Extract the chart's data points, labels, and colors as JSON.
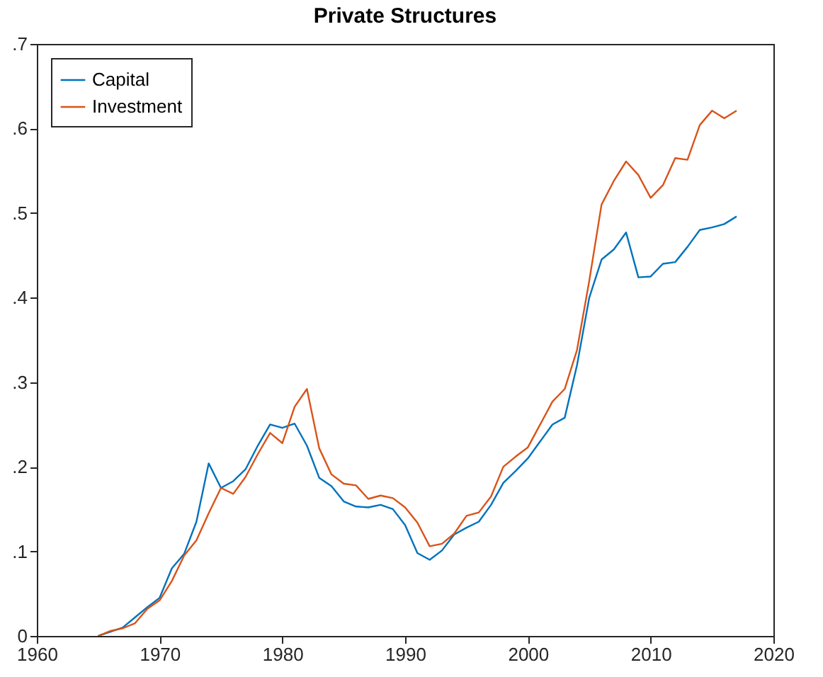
{
  "chart_data": {
    "type": "line",
    "title": "Private Structures",
    "x": [
      1965,
      1966,
      1967,
      1968,
      1969,
      1970,
      1971,
      1972,
      1973,
      1974,
      1975,
      1976,
      1977,
      1978,
      1979,
      1980,
      1981,
      1982,
      1983,
      1984,
      1985,
      1986,
      1987,
      1988,
      1989,
      1990,
      1991,
      1992,
      1993,
      1994,
      1995,
      1996,
      1997,
      1998,
      1999,
      2000,
      2001,
      2002,
      2003,
      2004,
      2005,
      2006,
      2007,
      2008,
      2009,
      2010,
      2011,
      2012,
      2013,
      2014,
      2015,
      2016,
      2017
    ],
    "series": [
      {
        "name": "Capital",
        "color": "#0072bd",
        "values": [
          0.0,
          0.005,
          0.01,
          0.022,
          0.034,
          0.045,
          0.08,
          0.097,
          0.135,
          0.204,
          0.175,
          0.183,
          0.197,
          0.225,
          0.25,
          0.246,
          0.251,
          0.225,
          0.187,
          0.177,
          0.159,
          0.153,
          0.152,
          0.155,
          0.15,
          0.131,
          0.098,
          0.09,
          0.101,
          0.12,
          0.128,
          0.135,
          0.155,
          0.181,
          0.195,
          0.21,
          0.23,
          0.25,
          0.258,
          0.32,
          0.4,
          0.445,
          0.457,
          0.477,
          0.424,
          0.425,
          0.44,
          0.442,
          0.46,
          0.48,
          0.483,
          0.487,
          0.496
        ]
      },
      {
        "name": "Investment",
        "color": "#d95319",
        "values": [
          0.0,
          0.006,
          0.009,
          0.015,
          0.032,
          0.042,
          0.065,
          0.095,
          0.113,
          0.145,
          0.175,
          0.168,
          0.188,
          0.215,
          0.24,
          0.228,
          0.271,
          0.292,
          0.222,
          0.191,
          0.18,
          0.178,
          0.162,
          0.166,
          0.163,
          0.152,
          0.134,
          0.106,
          0.109,
          0.121,
          0.142,
          0.146,
          0.165,
          0.2,
          0.212,
          0.223,
          0.25,
          0.277,
          0.292,
          0.338,
          0.42,
          0.51,
          0.538,
          0.561,
          0.545,
          0.518,
          0.533,
          0.565,
          0.563,
          0.604,
          0.621,
          0.612,
          0.621
        ]
      }
    ],
    "xlim": [
      1960,
      2020
    ],
    "xticks": [
      1960,
      1970,
      1980,
      1990,
      2000,
      2010,
      2020
    ],
    "ylim": [
      0,
      0.7
    ],
    "yticks": [
      0,
      {
        "value": 0.1,
        "label": ".1"
      },
      {
        "value": 0.2,
        "label": ".2"
      },
      {
        "value": 0.3,
        "label": ".3"
      },
      {
        "value": 0.4,
        "label": ".4"
      },
      {
        "value": 0.5,
        "label": ".5"
      },
      {
        "value": 0.6,
        "label": ".6"
      },
      {
        "value": 0.7,
        "label": ".7"
      }
    ],
    "grid": false,
    "legend": "top left",
    "marker": "none",
    "line_style": "solid"
  }
}
